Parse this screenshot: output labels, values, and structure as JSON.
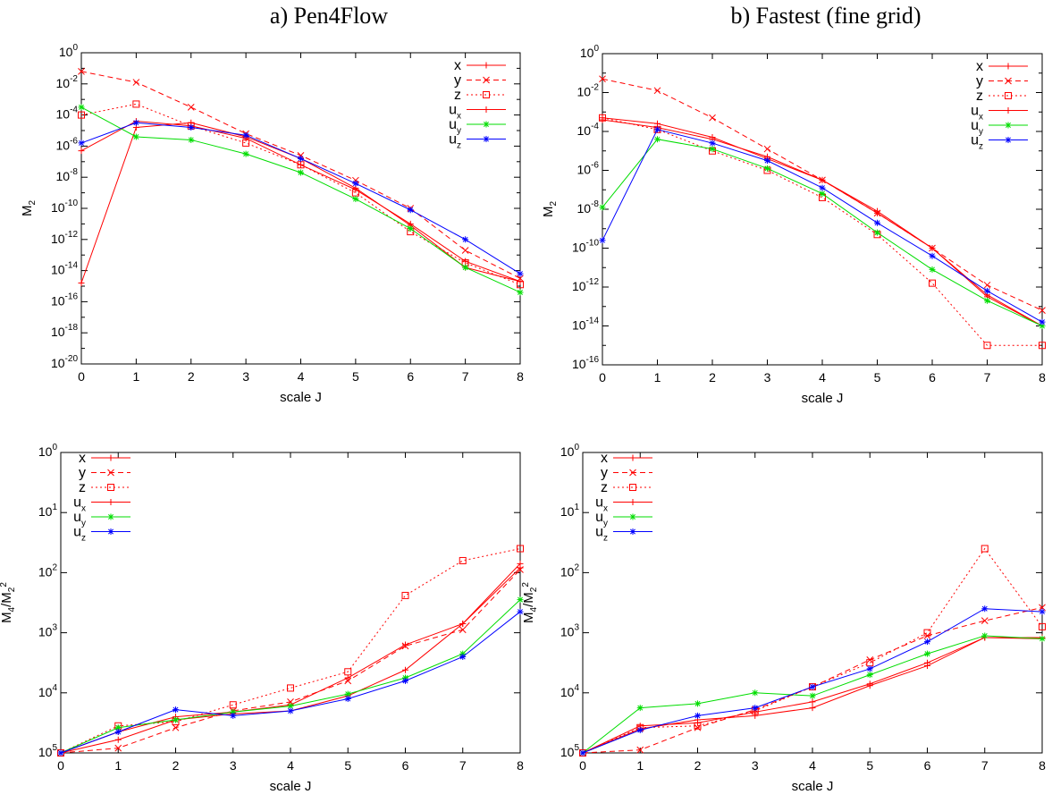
{
  "colors": {
    "x": "#ff0000",
    "y": "#ff0000",
    "z": "#ff0000",
    "ux": "#ff0000",
    "uy": "#00dd00",
    "uz": "#0000ff"
  },
  "titles": {
    "left": "a) Pen4Flow",
    "right": "b) Fastest (fine grid)"
  },
  "chart_data": [
    {
      "type": "line",
      "log_y": true,
      "xlabel": "scale J",
      "ylabel": "M2",
      "x": [
        0,
        1,
        2,
        3,
        4,
        5,
        6,
        7,
        8
      ],
      "xticks": [
        "0",
        "1",
        "2",
        "3",
        "4",
        "5",
        "6",
        "7",
        "8"
      ],
      "ylim": [
        -20,
        0
      ],
      "yticks": [
        {
          "b": "10",
          "e": "0"
        },
        {
          "b": "10",
          "e": "-2"
        },
        {
          "b": "10",
          "e": "-4"
        },
        {
          "b": "10",
          "e": "-6"
        },
        {
          "b": "10",
          "e": "-8"
        },
        {
          "b": "10",
          "e": "-10"
        },
        {
          "b": "10",
          "e": "-12"
        },
        {
          "b": "10",
          "e": "-14"
        },
        {
          "b": "10",
          "e": "-16"
        },
        {
          "b": "10",
          "e": "-18"
        },
        {
          "b": "10",
          "e": "-20"
        }
      ],
      "legend_position": "top-right",
      "series": [
        {
          "name": "x",
          "log10_values": [
            -14.8,
            -4.8,
            -4.5,
            -5.4,
            -6.8,
            -8.7,
            -11.1,
            -13.8,
            -14.7
          ]
        },
        {
          "name": "y",
          "log10_values": [
            -1.2,
            -1.9,
            -3.5,
            -5.2,
            -6.6,
            -8.2,
            -10.0,
            -12.7,
            -14.5
          ]
        },
        {
          "name": "z",
          "log10_values": [
            -4.0,
            -3.3,
            -4.7,
            -5.8,
            -7.2,
            -9.0,
            -11.5,
            -13.5,
            -14.9
          ]
        },
        {
          "name": "ux",
          "log10_values": [
            -6.3,
            -4.4,
            -4.7,
            -5.5,
            -7.2,
            -8.8,
            -11.0,
            -13.4,
            -14.7
          ]
        },
        {
          "name": "uy",
          "log10_values": [
            -3.5,
            -5.4,
            -5.6,
            -6.5,
            -7.7,
            -9.4,
            -11.3,
            -13.8,
            -15.4
          ]
        },
        {
          "name": "uz",
          "log10_values": [
            -5.8,
            -4.5,
            -4.8,
            -5.3,
            -6.8,
            -8.4,
            -10.1,
            -12.0,
            -14.2
          ]
        }
      ]
    },
    {
      "type": "line",
      "log_y": true,
      "xlabel": "scale J",
      "ylabel": "M2",
      "x": [
        0,
        1,
        2,
        3,
        4,
        5,
        6,
        7,
        8
      ],
      "xticks": [
        "0",
        "1",
        "2",
        "3",
        "4",
        "5",
        "6",
        "7",
        "8"
      ],
      "ylim": [
        -16,
        0
      ],
      "yticks": [
        {
          "b": "10",
          "e": "0"
        },
        {
          "b": "10",
          "e": "-2"
        },
        {
          "b": "10",
          "e": "-4"
        },
        {
          "b": "10",
          "e": "-6"
        },
        {
          "b": "10",
          "e": "-8"
        },
        {
          "b": "10",
          "e": "-10"
        },
        {
          "b": "10",
          "e": "-12"
        },
        {
          "b": "10",
          "e": "-14"
        },
        {
          "b": "10",
          "e": "-16"
        }
      ],
      "legend_position": "top-right",
      "series": [
        {
          "name": "x",
          "log10_values": [
            -3.3,
            -3.6,
            -4.3,
            -5.4,
            -6.5,
            -8.1,
            -10.0,
            -12.4,
            -14.0
          ]
        },
        {
          "name": "y",
          "log10_values": [
            -1.3,
            -1.9,
            -3.3,
            -4.9,
            -6.5,
            -8.2,
            -10.0,
            -11.9,
            -13.2
          ]
        },
        {
          "name": "z",
          "log10_values": [
            -3.3,
            -3.9,
            -5.0,
            -6.0,
            -7.4,
            -9.3,
            -11.8,
            -15.0,
            -15.0
          ]
        },
        {
          "name": "ux",
          "log10_values": [
            -3.4,
            -3.8,
            -4.4,
            -5.3,
            -6.5,
            -8.2,
            -10.0,
            -12.5,
            -14.0
          ]
        },
        {
          "name": "uy",
          "log10_values": [
            -7.9,
            -4.4,
            -4.9,
            -5.9,
            -7.2,
            -9.2,
            -11.1,
            -12.7,
            -14.0
          ]
        },
        {
          "name": "uz",
          "log10_values": [
            -9.6,
            -3.9,
            -4.6,
            -5.5,
            -6.9,
            -8.7,
            -10.4,
            -12.2,
            -13.8
          ]
        }
      ]
    },
    {
      "type": "line",
      "log_y": true,
      "xlabel": "scale J",
      "ylabel": "M4/M2^2",
      "x": [
        0,
        1,
        2,
        3,
        4,
        5,
        6,
        7,
        8
      ],
      "xticks": [
        "0",
        "1",
        "2",
        "3",
        "4",
        "5",
        "6",
        "7",
        "8"
      ],
      "ylim": [
        0,
        5
      ],
      "yticks": [
        {
          "b": "10",
          "e": "0"
        },
        {
          "b": "10",
          "e": "1"
        },
        {
          "b": "10",
          "e": "2"
        },
        {
          "b": "10",
          "e": "3"
        },
        {
          "b": "10",
          "e": "4"
        },
        {
          "b": "10",
          "e": "5"
        }
      ],
      "legend_position": "top-left",
      "series": [
        {
          "name": "x",
          "log10_values": [
            0.0,
            0.22,
            0.55,
            0.65,
            0.7,
            0.95,
            1.38,
            2.15,
            3.08
          ]
        },
        {
          "name": "y",
          "log10_values": [
            0.0,
            0.08,
            0.42,
            0.7,
            0.85,
            1.2,
            1.78,
            2.05,
            3.05
          ]
        },
        {
          "name": "z",
          "log10_values": [
            0.0,
            0.45,
            0.52,
            0.8,
            1.08,
            1.35,
            2.62,
            3.2,
            3.4
          ]
        },
        {
          "name": "ux",
          "log10_values": [
            0.0,
            0.35,
            0.6,
            0.68,
            0.8,
            1.25,
            1.8,
            2.15,
            3.15
          ]
        },
        {
          "name": "uy",
          "log10_values": [
            0.0,
            0.42,
            0.55,
            0.68,
            0.78,
            0.98,
            1.25,
            1.65,
            2.55
          ]
        },
        {
          "name": "uz",
          "log10_values": [
            0.0,
            0.35,
            0.72,
            0.62,
            0.7,
            0.9,
            1.2,
            1.6,
            2.35
          ]
        }
      ]
    },
    {
      "type": "line",
      "log_y": true,
      "xlabel": "scale J",
      "ylabel": "M4/M2^2",
      "x": [
        0,
        1,
        2,
        3,
        4,
        5,
        6,
        7,
        8
      ],
      "xticks": [
        "0",
        "1",
        "2",
        "3",
        "4",
        "5",
        "6",
        "7",
        "8"
      ],
      "ylim": [
        0,
        5
      ],
      "yticks": [
        {
          "b": "10",
          "e": "0"
        },
        {
          "b": "10",
          "e": "1"
        },
        {
          "b": "10",
          "e": "2"
        },
        {
          "b": "10",
          "e": "3"
        },
        {
          "b": "10",
          "e": "4"
        },
        {
          "b": "10",
          "e": "5"
        }
      ],
      "legend_position": "top-left",
      "series": [
        {
          "name": "x",
          "log10_values": [
            0.0,
            0.4,
            0.55,
            0.62,
            0.75,
            1.12,
            1.45,
            1.92,
            1.9
          ]
        },
        {
          "name": "y",
          "log10_values": [
            0.0,
            0.05,
            0.42,
            0.72,
            1.1,
            1.55,
            1.95,
            2.2,
            2.42
          ]
        },
        {
          "name": "z",
          "log10_values": [
            0.0,
            0.42,
            0.45,
            0.7,
            1.1,
            1.5,
            2.0,
            3.4,
            2.1
          ]
        },
        {
          "name": "ux",
          "log10_values": [
            0.0,
            0.45,
            0.5,
            0.68,
            0.85,
            1.15,
            1.5,
            1.92,
            1.92
          ]
        },
        {
          "name": "uy",
          "log10_values": [
            0.0,
            0.75,
            0.82,
            1.0,
            0.95,
            1.3,
            1.65,
            1.95,
            1.9
          ]
        },
        {
          "name": "uz",
          "log10_values": [
            0.0,
            0.38,
            0.62,
            0.75,
            1.1,
            1.4,
            1.85,
            2.4,
            2.35
          ]
        }
      ]
    }
  ]
}
